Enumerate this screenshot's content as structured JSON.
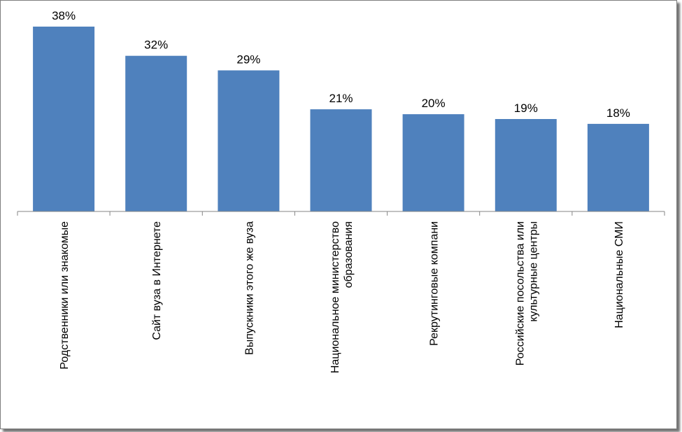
{
  "chart_data": {
    "type": "bar",
    "categories": [
      [
        "Родственники или знакомые"
      ],
      [
        "Сайт вуза в Интернете"
      ],
      [
        "Выпускники этого же вуза"
      ],
      [
        "Национальное министерство",
        "образования"
      ],
      [
        "Рекрутинговые компани"
      ],
      [
        "Российские посольства или",
        "культурные центры"
      ],
      [
        "Национальные СМИ"
      ]
    ],
    "values": [
      38,
      32,
      29,
      21,
      20,
      19,
      18
    ],
    "data_labels": [
      "38%",
      "32%",
      "29%",
      "21%",
      "20%",
      "19%",
      "18%"
    ],
    "title": "",
    "xlabel": "",
    "ylabel": "",
    "ylim": [
      0,
      38
    ],
    "grid": false,
    "legend": "none",
    "bar_color": "#4f81bd"
  }
}
